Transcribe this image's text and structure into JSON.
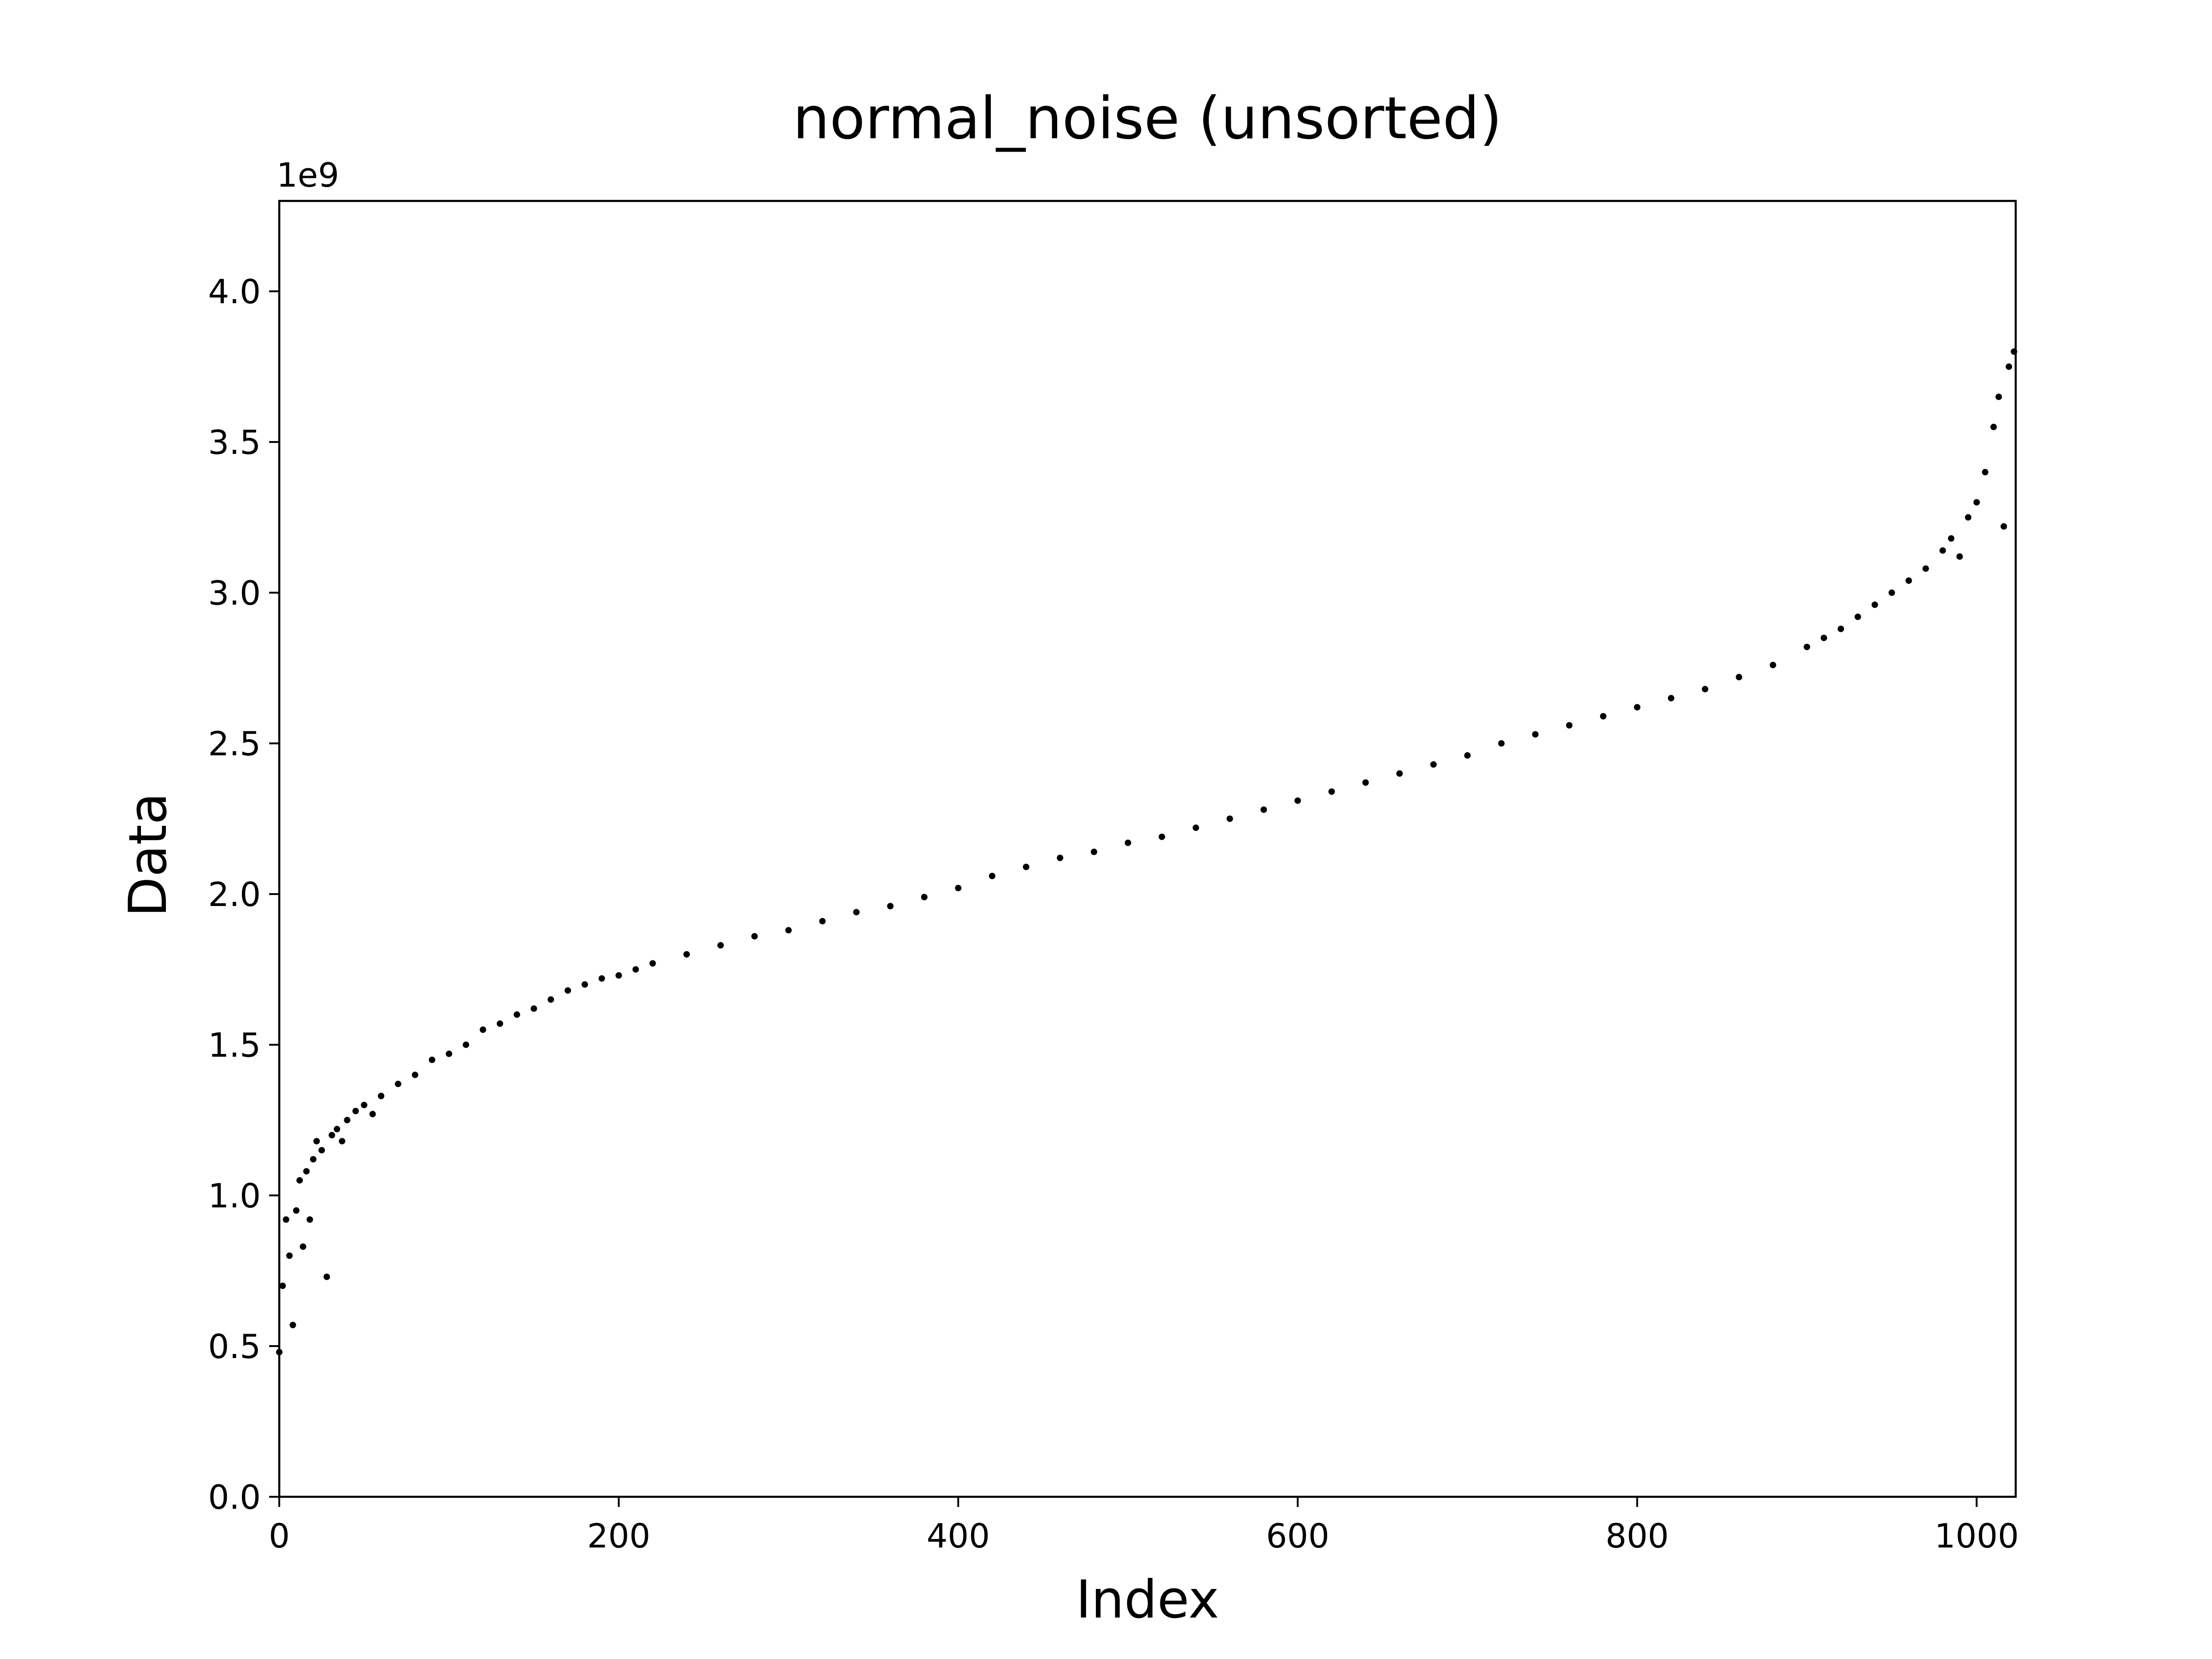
{
  "chart_data": {
    "type": "scatter",
    "title": "normal_noise (unsorted)",
    "xlabel": "Index",
    "ylabel": "Data",
    "y_offset_label": "1e9",
    "xlim": [
      0,
      1023
    ],
    "ylim": [
      0,
      4.3
    ],
    "x_ticks": [
      {
        "value": 0,
        "label": "0"
      },
      {
        "value": 200,
        "label": "200"
      },
      {
        "value": 400,
        "label": "400"
      },
      {
        "value": 600,
        "label": "600"
      },
      {
        "value": 800,
        "label": "800"
      },
      {
        "value": 1000,
        "label": "1000"
      }
    ],
    "y_ticks": [
      {
        "value": 0.0,
        "label": "0.0"
      },
      {
        "value": 0.5,
        "label": "0.5"
      },
      {
        "value": 1.0,
        "label": "1.0"
      },
      {
        "value": 1.5,
        "label": "1.5"
      },
      {
        "value": 2.0,
        "label": "2.0"
      },
      {
        "value": 2.5,
        "label": "2.5"
      },
      {
        "value": 3.0,
        "label": "3.0"
      },
      {
        "value": 3.5,
        "label": "3.5"
      },
      {
        "value": 4.0,
        "label": "4.0"
      }
    ],
    "grid": false,
    "marker_color": "#000000",
    "series": [
      {
        "x": [
          0,
          2,
          4,
          6,
          8,
          10,
          12,
          14,
          16,
          18,
          20,
          22,
          25,
          28,
          31,
          34,
          37,
          40,
          45,
          50,
          55,
          60,
          70,
          80,
          90,
          100,
          110,
          120,
          130,
          140,
          150,
          160,
          170,
          180,
          190,
          200,
          210,
          220,
          240,
          260,
          280,
          300,
          320,
          340,
          360,
          380,
          400,
          420,
          440,
          460,
          480,
          500,
          520,
          540,
          560,
          580,
          600,
          620,
          640,
          660,
          680,
          700,
          720,
          740,
          760,
          780,
          800,
          820,
          840,
          860,
          880,
          900,
          910,
          920,
          930,
          940,
          950,
          960,
          970,
          980,
          985,
          990,
          995,
          1000,
          1005,
          1010,
          1013,
          1016,
          1019,
          1022
        ],
        "y": [
          0.48,
          0.7,
          0.92,
          0.8,
          0.57,
          0.95,
          1.05,
          0.83,
          1.08,
          0.92,
          1.12,
          1.18,
          1.15,
          0.73,
          1.2,
          1.22,
          1.18,
          1.25,
          1.28,
          1.3,
          1.27,
          1.33,
          1.37,
          1.4,
          1.45,
          1.47,
          1.5,
          1.55,
          1.57,
          1.6,
          1.62,
          1.65,
          1.68,
          1.7,
          1.72,
          1.73,
          1.75,
          1.77,
          1.8,
          1.83,
          1.86,
          1.88,
          1.91,
          1.94,
          1.96,
          1.99,
          2.02,
          2.06,
          2.09,
          2.12,
          2.14,
          2.17,
          2.19,
          2.22,
          2.25,
          2.28,
          2.31,
          2.34,
          2.37,
          2.4,
          2.43,
          2.46,
          2.5,
          2.53,
          2.56,
          2.59,
          2.62,
          2.65,
          2.68,
          2.72,
          2.76,
          2.82,
          2.85,
          2.88,
          2.92,
          2.96,
          3.0,
          3.04,
          3.08,
          3.14,
          3.18,
          3.12,
          3.25,
          3.3,
          3.4,
          3.55,
          3.65,
          3.22,
          3.75,
          3.8
        ]
      }
    ]
  }
}
